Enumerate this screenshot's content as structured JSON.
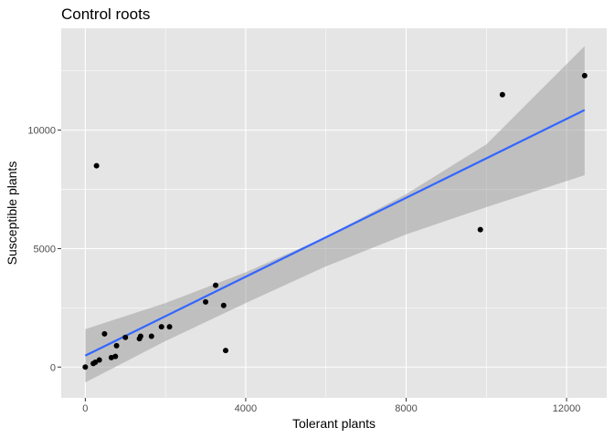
{
  "chart_data": {
    "type": "scatter",
    "title": "Control roots",
    "xlabel": "Tolerant plants",
    "ylabel": "Susceptible plants",
    "xlim": [
      -600,
      13000
    ],
    "ylim": [
      -1300,
      14300
    ],
    "xticks": [
      0,
      4000,
      8000,
      12000
    ],
    "xtick_labels": [
      "0",
      "4000",
      "8000",
      "12000"
    ],
    "yticks": [
      0,
      5000,
      10000
    ],
    "ytick_labels": [
      "0",
      "5000",
      "10000"
    ],
    "grid": true,
    "points": [
      {
        "x": 0,
        "y": 0
      },
      {
        "x": 200,
        "y": 150
      },
      {
        "x": 250,
        "y": 200
      },
      {
        "x": 280,
        "y": 8500
      },
      {
        "x": 350,
        "y": 300
      },
      {
        "x": 480,
        "y": 1400
      },
      {
        "x": 650,
        "y": 400
      },
      {
        "x": 750,
        "y": 450
      },
      {
        "x": 780,
        "y": 900
      },
      {
        "x": 1000,
        "y": 1250
      },
      {
        "x": 1350,
        "y": 1200
      },
      {
        "x": 1380,
        "y": 1300
      },
      {
        "x": 1650,
        "y": 1300
      },
      {
        "x": 1900,
        "y": 1700
      },
      {
        "x": 2100,
        "y": 1700
      },
      {
        "x": 3000,
        "y": 2750
      },
      {
        "x": 3250,
        "y": 3450
      },
      {
        "x": 3450,
        "y": 2600
      },
      {
        "x": 3500,
        "y": 700
      },
      {
        "x": 9850,
        "y": 5800
      },
      {
        "x": 10400,
        "y": 11500
      },
      {
        "x": 12450,
        "y": 12300
      }
    ],
    "fit": {
      "method": "linear",
      "color": "#3366ff",
      "band_color": "#999999",
      "x": [
        0,
        12450
      ],
      "y": [
        480,
        10850
      ],
      "lower": [
        -650,
        8100
      ],
      "upper": [
        1600,
        13550
      ],
      "band_curve": [
        {
          "x": 0,
          "lower": -650,
          "upper": 1600
        },
        {
          "x": 2000,
          "lower": 1100,
          "upper": 2700
        },
        {
          "x": 4000,
          "lower": 2700,
          "upper": 4000
        },
        {
          "x": 6000,
          "lower": 4250,
          "upper": 5500
        },
        {
          "x": 8000,
          "lower": 5600,
          "upper": 7300
        },
        {
          "x": 10000,
          "lower": 6750,
          "upper": 9400
        },
        {
          "x": 12450,
          "lower": 8100,
          "upper": 13550
        }
      ]
    },
    "colors": {
      "panel": "#e5e5e5",
      "grid_major": "#ffffff",
      "point": "#000000"
    }
  }
}
